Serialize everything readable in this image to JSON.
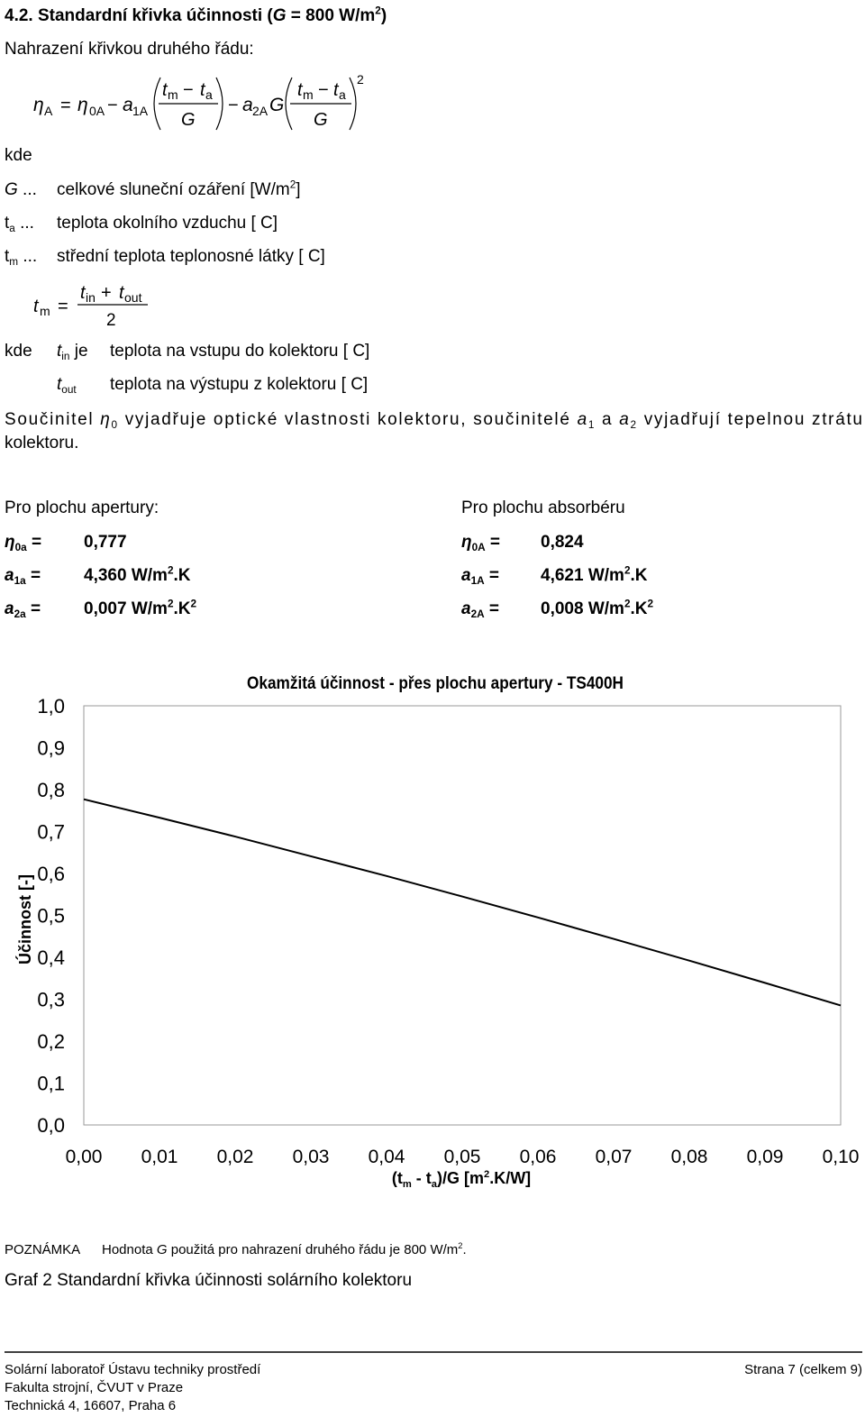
{
  "heading": [
    "4.2. Standardní křivka účinnosti (",
    "G",
    " = 800 W/m",
    "2",
    ")"
  ],
  "intro": "Nahrazení křivkou druhého řádu:",
  "formula1": [
    "η",
    "A",
    "=",
    "η",
    "0A",
    "−",
    "a",
    "1A",
    "t",
    "m",
    "−",
    "t",
    "a",
    "G",
    "−",
    "a",
    "2A",
    "G",
    "t",
    "m",
    "−",
    "t",
    "a",
    "G",
    "2"
  ],
  "where": "kde",
  "definitions": [
    [
      "G",
      " ...",
      "celkové sluneční ozáření [W/m",
      "2",
      "]"
    ],
    [
      "t",
      "a",
      " ...",
      "teplota okolního vzduchu [ C]"
    ],
    [
      "t",
      "m",
      " ...",
      "střední teplota teplonosné látky [ C]"
    ]
  ],
  "formula2": [
    "t",
    "m",
    "=",
    "t",
    "in",
    "+",
    "t",
    "out",
    "2"
  ],
  "where2": "kde",
  "inputs": [
    [
      "t",
      "in",
      " je",
      "teplota na vstupu do kolektoru [ C]"
    ],
    [
      "t",
      "out",
      "teplota na výstupu z kolektoru [ C]"
    ]
  ],
  "paragraph": [
    "Součinitel ",
    "η",
    "0",
    " vyjadřuje optické vlastnosti kolektoru, součinitelé ",
    "a",
    "1",
    " a ",
    "a",
    "2",
    " vyjadřují tepelnou ztrátu"
  ],
  "paragraph_end": "kolektoru.",
  "aperture": {
    "title": "Pro plochu apertury:",
    "rows": [
      [
        "η",
        "0a",
        " =",
        "0,777"
      ],
      [
        "a",
        "1a",
        " =",
        "4,360 W/m",
        "2",
        ".K"
      ],
      [
        "a",
        "2a",
        " =",
        "0,007 W/m",
        "2",
        ".K",
        "2"
      ]
    ]
  },
  "absorber": {
    "title": "Pro plochu absorbéru",
    "rows": [
      [
        "η",
        "0A",
        " =",
        "0,824"
      ],
      [
        "a",
        "1A",
        " =",
        "4,621 W/m",
        "2",
        ".K"
      ],
      [
        "a",
        "2A",
        " =",
        "0,008 W/m",
        "2",
        ".K",
        "2"
      ]
    ]
  },
  "chart_data": {
    "type": "line",
    "title": "Okamžitá účinnost - přes plochu apertury - TS400H",
    "y_label": "Účinnost [-]",
    "x_label": [
      "(t",
      "m",
      " - t",
      "a",
      ")/G [m",
      "2",
      ".K/W]"
    ],
    "x": [
      0,
      0.01,
      0.02,
      0.03,
      0.04,
      0.05,
      0.06,
      0.07,
      0.08,
      0.09,
      0.1
    ],
    "values": [
      0.777,
      0.733,
      0.688,
      0.641,
      0.594,
      0.545,
      0.495,
      0.444,
      0.392,
      0.339,
      0.285
    ],
    "color": "#000000",
    "xlim": [
      0,
      0.1
    ],
    "ylim": [
      0,
      1
    ],
    "xticks": [
      {
        "value": 0,
        "label": "0,00"
      },
      {
        "value": 0.01,
        "label": "0,01"
      },
      {
        "value": 0.02,
        "label": "0,02"
      },
      {
        "value": 0.03,
        "label": "0,03"
      },
      {
        "value": 0.04,
        "label": "0,04"
      },
      {
        "value": 0.05,
        "label": "0,05"
      },
      {
        "value": 0.06,
        "label": "0,06"
      },
      {
        "value": 0.07,
        "label": "0,07"
      },
      {
        "value": 0.08,
        "label": "0,08"
      },
      {
        "value": 0.09,
        "label": "0,09"
      },
      {
        "value": 0.1,
        "label": "0,10"
      }
    ],
    "yticks": [
      {
        "value": 0,
        "label": "0,0"
      },
      {
        "value": 0.1,
        "label": "0,1"
      },
      {
        "value": 0.2,
        "label": "0,2"
      },
      {
        "value": 0.3,
        "label": "0,3"
      },
      {
        "value": 0.4,
        "label": "0,4"
      },
      {
        "value": 0.5,
        "label": "0,5"
      },
      {
        "value": 0.6,
        "label": "0,6"
      },
      {
        "value": 0.7,
        "label": "0,7"
      },
      {
        "value": 0.8,
        "label": "0,8"
      },
      {
        "value": 0.9,
        "label": "0,9"
      },
      {
        "value": 1,
        "label": "1,0"
      }
    ],
    "grid": false
  },
  "note": [
    "POZNÁMKA",
    "Hodnota ",
    "G",
    " použitá pro nahrazení druhého řádu je 800 W/m",
    "2",
    "."
  ],
  "caption": "Graf 2 Standardní křivka účinnosti solárního kolektoru",
  "footer": {
    "lines": [
      "Solární laboratoř Ústavu techniky prostředí",
      "Fakulta strojní, ČVUT v Praze",
      "Technická 4, 16607, Praha 6"
    ],
    "page": "Strana 7 (celkem 9)"
  }
}
